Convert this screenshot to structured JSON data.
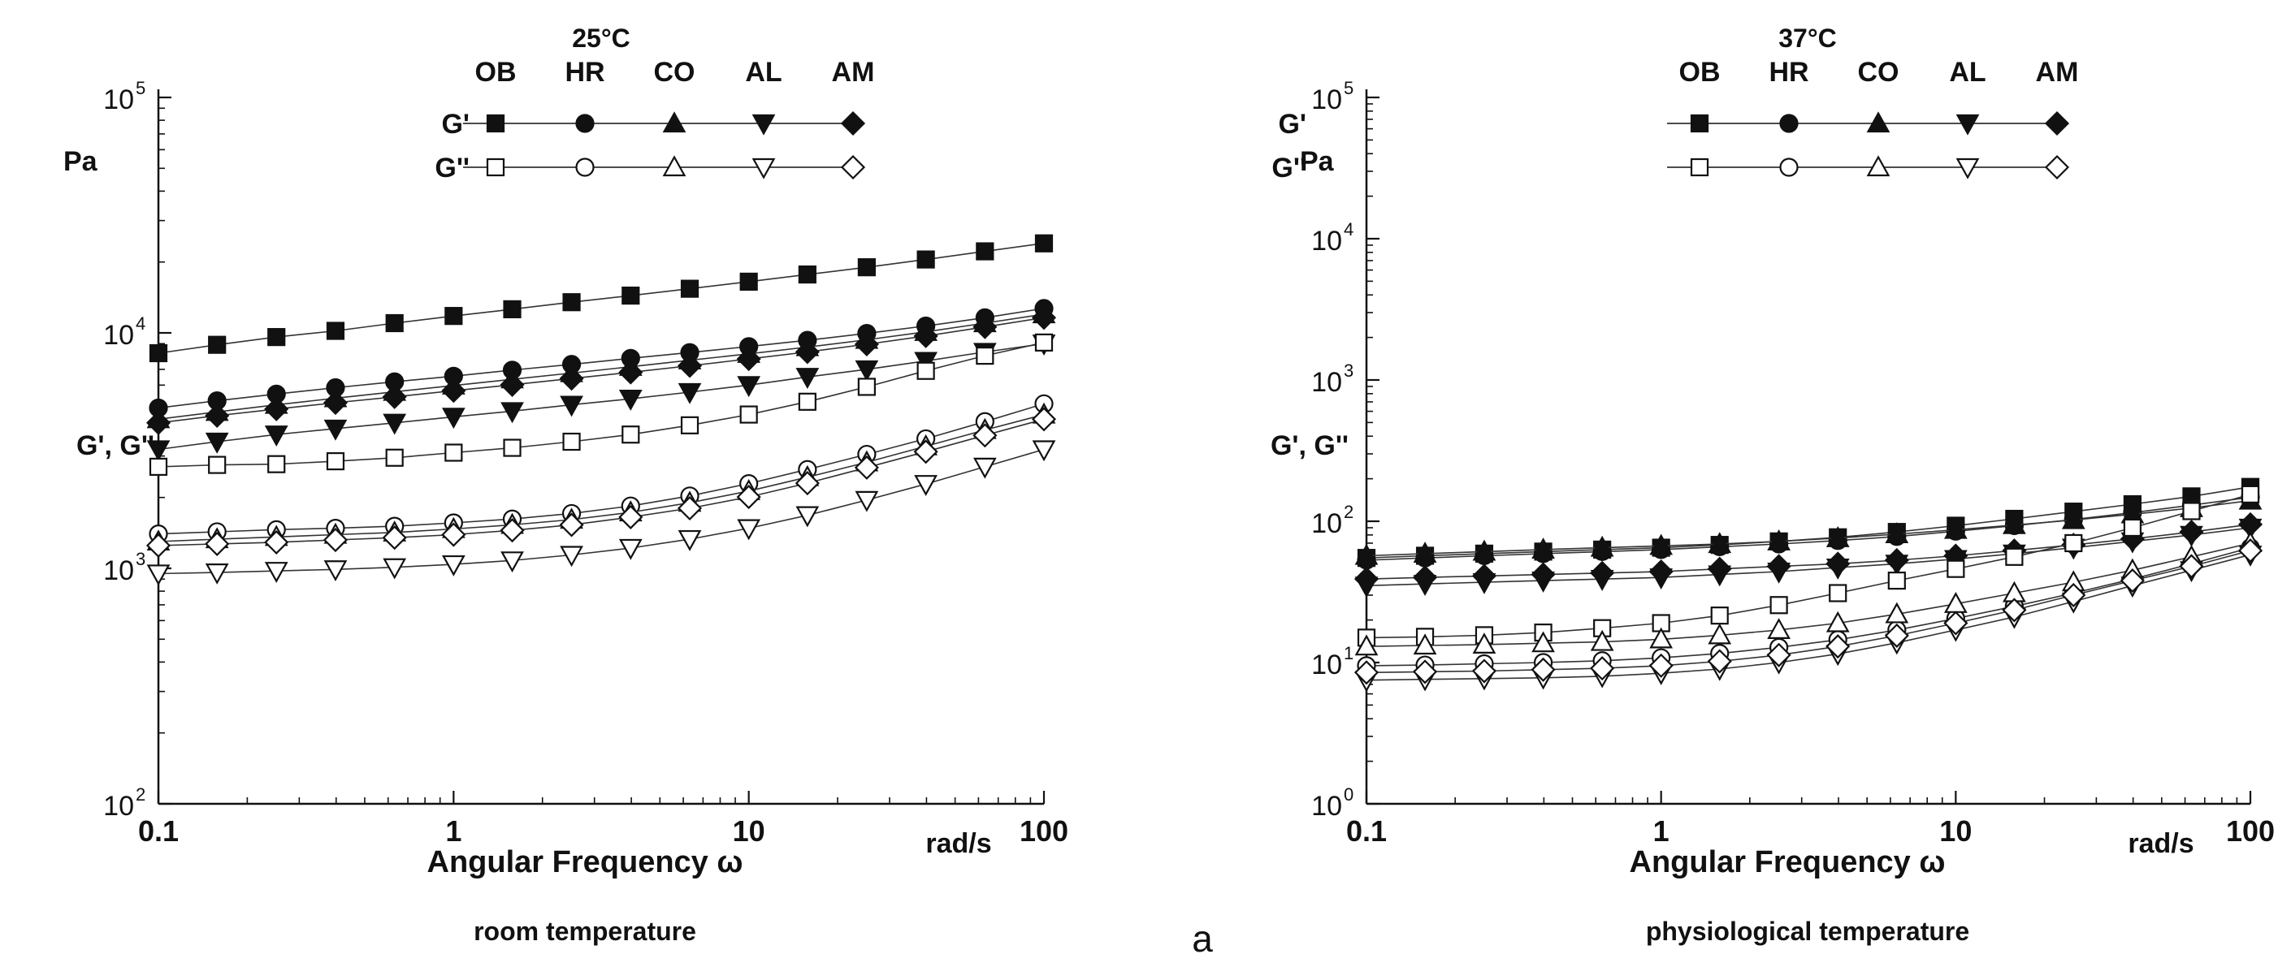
{
  "figure_label": "a",
  "marker_colors": {
    "filled": "#111111",
    "open": "#ffffff",
    "line": "#333333"
  },
  "chart_data": [
    {
      "type": "line",
      "title": "25°C",
      "caption": "room temperature",
      "xlabel": "Angular Frequency ω",
      "xunit": "rad/s",
      "ylabel": "G', G''",
      "yunit": "Pa",
      "xscale": "log",
      "yscale": "log",
      "xlim": [
        0.1,
        100
      ],
      "ylim": [
        100,
        100000
      ],
      "xticks": [
        {
          "v": 0.1,
          "label": "0.1"
        },
        {
          "v": 1,
          "label": "1"
        },
        {
          "v": 10,
          "label": "10"
        },
        {
          "v": 100,
          "label": "100"
        }
      ],
      "yticks": [
        {
          "v": 100,
          "label": "10",
          "exp": "2"
        },
        {
          "v": 1000,
          "label": "10",
          "exp": "3"
        },
        {
          "v": 10000,
          "label": "10",
          "exp": "4"
        },
        {
          "v": 100000,
          "label": "10",
          "exp": "5"
        }
      ],
      "legend": {
        "placement": "top-center",
        "samples": [
          "OB",
          "HR",
          "CO",
          "AL",
          "AM"
        ],
        "rows": [
          "G'",
          "G''"
        ]
      },
      "x": [
        0.1,
        0.158,
        0.251,
        0.398,
        0.631,
        1,
        1.58,
        2.51,
        3.98,
        6.31,
        10,
        15.8,
        25.1,
        39.8,
        63.1,
        100
      ],
      "series": [
        {
          "name": "OB G'",
          "sample": "OB",
          "modulus": "G'",
          "marker": "square",
          "filled": true,
          "values": [
            8200,
            8900,
            9600,
            10200,
            11000,
            11800,
            12600,
            13500,
            14400,
            15400,
            16500,
            17700,
            19000,
            20500,
            22200,
            24000
          ]
        },
        {
          "name": "HR G'",
          "sample": "HR",
          "modulus": "G'",
          "marker": "circle",
          "filled": true,
          "values": [
            4800,
            5150,
            5500,
            5850,
            6200,
            6550,
            6950,
            7350,
            7800,
            8250,
            8750,
            9300,
            9950,
            10700,
            11600,
            12700
          ]
        },
        {
          "name": "CO G'",
          "sample": "CO",
          "modulus": "G'",
          "marker": "triangle-up",
          "filled": true,
          "values": [
            4300,
            4620,
            4950,
            5280,
            5620,
            5980,
            6350,
            6750,
            7180,
            7650,
            8150,
            8700,
            9350,
            10100,
            11000,
            12000
          ]
        },
        {
          "name": "AL G'",
          "sample": "AL",
          "modulus": "G'",
          "marker": "triangle-down",
          "filled": true,
          "values": [
            3200,
            3450,
            3700,
            3920,
            4150,
            4400,
            4650,
            4950,
            5250,
            5600,
            6000,
            6500,
            7000,
            7600,
            8300,
            9000
          ]
        },
        {
          "name": "AM G'",
          "sample": "AM",
          "modulus": "G'",
          "marker": "diamond",
          "filled": true,
          "values": [
            4150,
            4450,
            4750,
            5050,
            5350,
            5680,
            6020,
            6400,
            6800,
            7250,
            7750,
            8300,
            8950,
            9700,
            10600,
            11600
          ]
        },
        {
          "name": "OB G''",
          "sample": "OB",
          "modulus": "G''",
          "marker": "square",
          "filled": false,
          "values": [
            2700,
            2750,
            2770,
            2850,
            2950,
            3100,
            3250,
            3450,
            3700,
            4050,
            4500,
            5100,
            5900,
            6900,
            8000,
            9100
          ]
        },
        {
          "name": "HR G''",
          "sample": "HR",
          "modulus": "G''",
          "marker": "circle",
          "filled": false,
          "values": [
            1400,
            1430,
            1460,
            1480,
            1510,
            1560,
            1620,
            1710,
            1840,
            2030,
            2290,
            2630,
            3050,
            3550,
            4200,
            5000
          ]
        },
        {
          "name": "CO G''",
          "sample": "CO",
          "modulus": "G''",
          "marker": "triangle-up",
          "filled": false,
          "values": [
            1300,
            1330,
            1360,
            1390,
            1420,
            1470,
            1530,
            1610,
            1730,
            1900,
            2130,
            2440,
            2820,
            3300,
            3870,
            4500
          ]
        },
        {
          "name": "AL G''",
          "sample": "AL",
          "modulus": "G''",
          "marker": "triangle-down",
          "filled": false,
          "values": [
            950,
            960,
            975,
            990,
            1010,
            1040,
            1080,
            1140,
            1220,
            1330,
            1480,
            1680,
            1950,
            2280,
            2700,
            3200
          ]
        },
        {
          "name": "AM G''",
          "sample": "AM",
          "modulus": "G''",
          "marker": "diamond",
          "filled": false,
          "values": [
            1250,
            1270,
            1290,
            1320,
            1350,
            1390,
            1450,
            1530,
            1650,
            1800,
            2010,
            2300,
            2680,
            3130,
            3670,
            4300
          ]
        }
      ]
    },
    {
      "type": "line",
      "title": "37°C",
      "caption": "physiological temperature",
      "xlabel": "Angular Frequency ω",
      "xunit": "rad/s",
      "ylabel": "G', G''",
      "yunit": "Pa",
      "xscale": "log",
      "yscale": "log",
      "xlim": [
        0.1,
        100
      ],
      "ylim": [
        1,
        100000
      ],
      "xticks": [
        {
          "v": 0.1,
          "label": "0.1"
        },
        {
          "v": 1,
          "label": "1"
        },
        {
          "v": 10,
          "label": "10"
        },
        {
          "v": 100,
          "label": "100"
        }
      ],
      "yticks": [
        {
          "v": 1,
          "label": "10",
          "exp": "0"
        },
        {
          "v": 10,
          "label": "10",
          "exp": "1"
        },
        {
          "v": 100,
          "label": "10",
          "exp": "2"
        },
        {
          "v": 1000,
          "label": "10",
          "exp": "3"
        },
        {
          "v": 10000,
          "label": "10",
          "exp": "4"
        },
        {
          "v": 100000,
          "label": "10",
          "exp": "5"
        }
      ],
      "legend": {
        "placement": "top-center",
        "samples": [
          "OB",
          "HR",
          "CO",
          "AL",
          "AM"
        ],
        "rows": [
          "G'",
          "G''"
        ]
      },
      "x": [
        0.1,
        0.158,
        0.251,
        0.398,
        0.631,
        1,
        1.58,
        2.51,
        3.98,
        6.31,
        10,
        15.8,
        25.1,
        39.8,
        63.1,
        100
      ],
      "series": [
        {
          "name": "OB G'",
          "sample": "OB",
          "modulus": "G'",
          "marker": "square",
          "filled": true,
          "values": [
            55,
            57,
            59,
            61,
            63,
            65,
            68,
            72,
            77,
            84,
            93,
            104,
            117,
            132,
            150,
            175
          ]
        },
        {
          "name": "HR G'",
          "sample": "HR",
          "modulus": "G'",
          "marker": "circle",
          "filled": true,
          "values": [
            53,
            55,
            57,
            59,
            61,
            63,
            66,
            69,
            73,
            78,
            85,
            93,
            103,
            115,
            130,
            148
          ]
        },
        {
          "name": "CO G'",
          "sample": "CO",
          "modulus": "G'",
          "marker": "triangle-up",
          "filled": true,
          "values": [
            57,
            59,
            61,
            63,
            65,
            67,
            69,
            72,
            76,
            81,
            87,
            94,
            102,
            112,
            124,
            140
          ]
        },
        {
          "name": "AL G'",
          "sample": "AL",
          "modulus": "G'",
          "marker": "triangle-down",
          "filled": true,
          "values": [
            35,
            36,
            37,
            38,
            39,
            40,
            42,
            44,
            47,
            50,
            54,
            59,
            65,
            72,
            80,
            90
          ]
        },
        {
          "name": "AM G'",
          "sample": "AM",
          "modulus": "G'",
          "marker": "diamond",
          "filled": true,
          "values": [
            39,
            40,
            41,
            42,
            43,
            44,
            46,
            48,
            50,
            53,
            57,
            62,
            68,
            75,
            84,
            95
          ]
        },
        {
          "name": "OB G''",
          "sample": "OB",
          "modulus": "G''",
          "marker": "square",
          "filled": false,
          "values": [
            15,
            15.2,
            15.6,
            16.3,
            17.5,
            19,
            21.5,
            25.5,
            31,
            38,
            46,
            56,
            70,
            90,
            118,
            155
          ]
        },
        {
          "name": "HR G''",
          "sample": "HR",
          "modulus": "G''",
          "marker": "circle",
          "filled": false,
          "values": [
            9.5,
            9.6,
            9.8,
            10,
            10.3,
            10.8,
            11.6,
            12.8,
            14.5,
            17,
            20.5,
            25,
            31,
            39,
            50,
            65
          ]
        },
        {
          "name": "CO G''",
          "sample": "CO",
          "modulus": "G''",
          "marker": "triangle-up",
          "filled": false,
          "values": [
            13,
            13.2,
            13.4,
            13.7,
            14,
            14.6,
            15.6,
            17,
            19,
            22,
            26,
            31,
            37,
            45,
            56,
            70
          ]
        },
        {
          "name": "AL G''",
          "sample": "AL",
          "modulus": "G''",
          "marker": "triangle-down",
          "filled": false,
          "values": [
            7.5,
            7.6,
            7.7,
            7.8,
            8,
            8.4,
            9,
            10,
            11.5,
            13.8,
            17,
            21,
            27,
            35,
            45,
            58
          ]
        },
        {
          "name": "AM G''",
          "sample": "AM",
          "modulus": "G''",
          "marker": "diamond",
          "filled": false,
          "values": [
            8.5,
            8.6,
            8.7,
            8.9,
            9.1,
            9.5,
            10.2,
            11.3,
            13,
            15.5,
            19,
            23.5,
            30,
            38,
            48,
            62
          ]
        }
      ]
    }
  ]
}
